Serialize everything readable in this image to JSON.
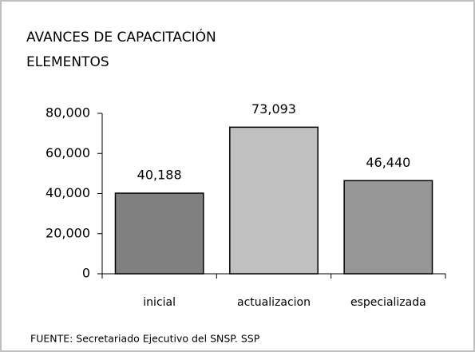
{
  "chart_data": {
    "type": "bar",
    "title": "AVANCES DE CAPACITACIÓN",
    "subtitle": "ELEMENTOS",
    "source": "FUENTE: Secretariado Ejecutivo del SNSP. SSP",
    "categories": [
      "inicial",
      "actualizacion",
      "especializada"
    ],
    "values": [
      40188,
      73093,
      46440
    ],
    "value_labels": [
      "40,188",
      "73,093",
      "46,440"
    ],
    "colors": [
      "#808080",
      "#c0c0c0",
      "#969696"
    ],
    "ylim": [
      0,
      80000
    ],
    "yticks": [
      0,
      {
        "value": 20000,
        "label": "20,000"
      },
      {
        "value": 40000,
        "label": "40,000"
      },
      {
        "value": 60000,
        "label": "60,000"
      },
      {
        "value": 80000,
        "label": "80,000"
      }
    ],
    "grid": false
  }
}
